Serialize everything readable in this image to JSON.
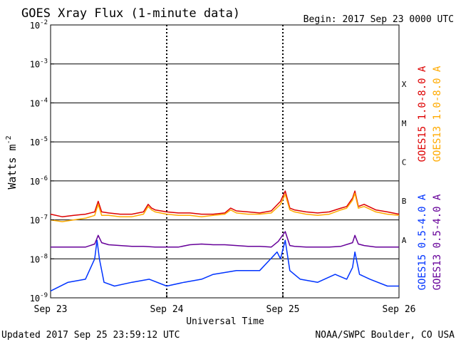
{
  "header": {
    "title": "GOES Xray Flux (1-minute data)",
    "begin": "Begin:  2017 Sep 23 0000 UTC"
  },
  "footer": {
    "updated": "Updated 2017 Sep 25 23:59:12 UTC",
    "credit": "NOAA/SWPC Boulder, CO USA"
  },
  "chart_data": {
    "type": "line",
    "title": "GOES Xray Flux (1-minute data)",
    "xlabel": "Universal Time",
    "ylabel": "Watts m",
    "ylabel_sup": "-2",
    "yscale": "log",
    "ylim": [
      1e-09,
      0.01
    ],
    "xlim_days": [
      0,
      3
    ],
    "x_ticks": [
      "Sep 23",
      "Sep 24",
      "Sep 25",
      "Sep 26"
    ],
    "y_ticks": [
      {
        "base": "10",
        "exp": "-9"
      },
      {
        "base": "10",
        "exp": "-8"
      },
      {
        "base": "10",
        "exp": "-7"
      },
      {
        "base": "10",
        "exp": "-6"
      },
      {
        "base": "10",
        "exp": "-5"
      },
      {
        "base": "10",
        "exp": "-4"
      },
      {
        "base": "10",
        "exp": "-3"
      },
      {
        "base": "10",
        "exp": "-2"
      }
    ],
    "flare_classes": [
      "X",
      "M",
      "C",
      "B",
      "A"
    ],
    "legend_position": "right",
    "series": [
      {
        "name": "GOES15 1.0-8.0 A",
        "color": "#dd0000",
        "x": [
          0,
          0.1,
          0.2,
          0.3,
          0.38,
          0.41,
          0.44,
          0.5,
          0.6,
          0.7,
          0.8,
          0.84,
          0.87,
          0.9,
          1.0,
          1.1,
          1.2,
          1.3,
          1.4,
          1.5,
          1.55,
          1.6,
          1.7,
          1.8,
          1.9,
          1.98,
          2.02,
          2.06,
          2.1,
          2.2,
          2.3,
          2.4,
          2.5,
          2.55,
          2.6,
          2.62,
          2.65,
          2.7,
          2.8,
          2.9,
          3.0
        ],
        "y": [
          1.4e-07,
          1.2e-07,
          1.3e-07,
          1.4e-07,
          1.6e-07,
          3e-07,
          1.6e-07,
          1.5e-07,
          1.4e-07,
          1.4e-07,
          1.6e-07,
          2.5e-07,
          2e-07,
          1.8e-07,
          1.6e-07,
          1.5e-07,
          1.5e-07,
          1.4e-07,
          1.4e-07,
          1.5e-07,
          2e-07,
          1.7e-07,
          1.6e-07,
          1.5e-07,
          1.7e-07,
          3e-07,
          5.5e-07,
          2e-07,
          1.8e-07,
          1.6e-07,
          1.5e-07,
          1.6e-07,
          2e-07,
          2.2e-07,
          3.6e-07,
          5.5e-07,
          2.2e-07,
          2.5e-07,
          1.8e-07,
          1.6e-07,
          1.4e-07
        ]
      },
      {
        "name": "GOES13 1.0-8.0 A",
        "color": "#ffaa00",
        "x": [
          0,
          0.1,
          0.2,
          0.3,
          0.38,
          0.41,
          0.44,
          0.5,
          0.6,
          0.7,
          0.8,
          0.84,
          0.87,
          0.9,
          1.0,
          1.1,
          1.2,
          1.3,
          1.4,
          1.5,
          1.55,
          1.6,
          1.7,
          1.8,
          1.9,
          1.98,
          2.02,
          2.06,
          2.1,
          2.2,
          2.3,
          2.4,
          2.5,
          2.55,
          2.6,
          2.62,
          2.65,
          2.7,
          2.8,
          2.9,
          3.0
        ],
        "y": [
          1e-07,
          9e-08,
          1e-07,
          1.1e-07,
          1.3e-07,
          2.5e-07,
          1.3e-07,
          1.3e-07,
          1.2e-07,
          1.2e-07,
          1.4e-07,
          2.2e-07,
          1.8e-07,
          1.6e-07,
          1.4e-07,
          1.3e-07,
          1.3e-07,
          1.2e-07,
          1.3e-07,
          1.4e-07,
          1.8e-07,
          1.5e-07,
          1.4e-07,
          1.4e-07,
          1.5e-07,
          2.5e-07,
          4.5e-07,
          1.8e-07,
          1.6e-07,
          1.4e-07,
          1.3e-07,
          1.4e-07,
          1.8e-07,
          2e-07,
          3.2e-07,
          4.8e-07,
          2e-07,
          2.2e-07,
          1.6e-07,
          1.4e-07,
          1.3e-07
        ]
      },
      {
        "name": "GOES15 0.5-4.0 A",
        "color": "#0033ff",
        "x": [
          0,
          0.15,
          0.3,
          0.38,
          0.4,
          0.42,
          0.46,
          0.55,
          0.7,
          0.85,
          1.0,
          1.15,
          1.3,
          1.4,
          1.6,
          1.8,
          1.95,
          1.98,
          2.02,
          2.06,
          2.15,
          2.3,
          2.45,
          2.55,
          2.6,
          2.62,
          2.66,
          2.75,
          2.9,
          3.0
        ],
        "y": [
          1.5e-09,
          2.5e-09,
          3e-09,
          1e-08,
          3e-08,
          1e-08,
          2.5e-09,
          2e-09,
          2.5e-09,
          3e-09,
          2e-09,
          2.5e-09,
          3e-09,
          4e-09,
          5e-09,
          5e-09,
          1.5e-08,
          1e-08,
          3e-08,
          5e-09,
          3e-09,
          2.5e-09,
          4e-09,
          3e-09,
          6e-09,
          1.5e-08,
          4e-09,
          3e-09,
          2e-09,
          2e-09
        ]
      },
      {
        "name": "GOES13 0.5-4.0 A",
        "color": "#660099",
        "x": [
          0,
          0.1,
          0.2,
          0.3,
          0.38,
          0.41,
          0.44,
          0.5,
          0.6,
          0.7,
          0.8,
          0.9,
          1.0,
          1.1,
          1.2,
          1.3,
          1.4,
          1.5,
          1.6,
          1.7,
          1.8,
          1.9,
          1.96,
          2.02,
          2.06,
          2.1,
          2.2,
          2.3,
          2.4,
          2.5,
          2.6,
          2.62,
          2.65,
          2.7,
          2.8,
          2.9,
          3.0
        ],
        "y": [
          2e-08,
          2e-08,
          2e-08,
          2e-08,
          2.4e-08,
          4e-08,
          2.6e-08,
          2.3e-08,
          2.2e-08,
          2.1e-08,
          2.1e-08,
          2e-08,
          2e-08,
          2e-08,
          2.3e-08,
          2.4e-08,
          2.3e-08,
          2.3e-08,
          2.2e-08,
          2.1e-08,
          2.1e-08,
          2e-08,
          2.8e-08,
          5e-08,
          2.2e-08,
          2.1e-08,
          2e-08,
          2e-08,
          2e-08,
          2.1e-08,
          2.6e-08,
          4e-08,
          2.4e-08,
          2.2e-08,
          2e-08,
          2e-08,
          2e-08
        ]
      }
    ]
  }
}
